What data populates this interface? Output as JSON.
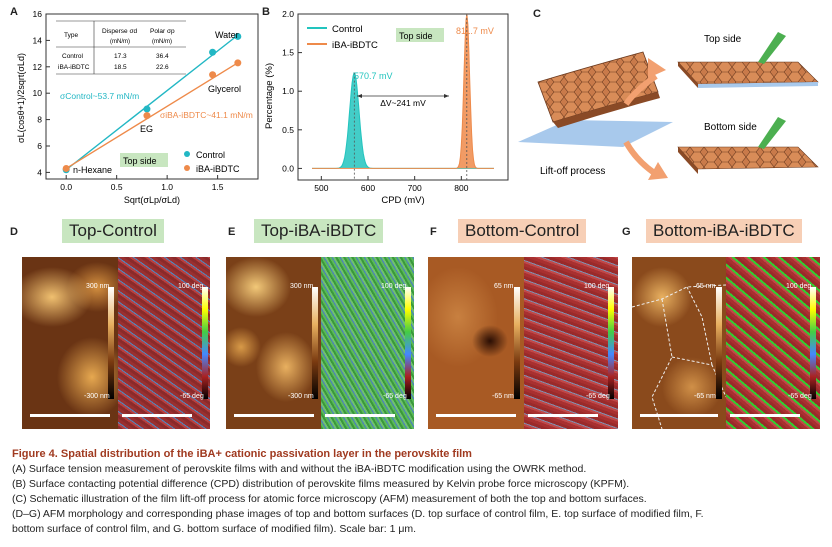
{
  "panelA": {
    "letter": "A",
    "ylabel": "σL(cosθ+1)/2sqrt(σLd)",
    "xlabel": "Sqrt(σLp/σLd)",
    "table": {
      "headers": [
        "Type",
        "Disperse σd",
        "Polar σp"
      ],
      "units": [
        "",
        "(mN/m)",
        "(mN/m)"
      ],
      "rows": [
        [
          "Control",
          "17.3",
          "36.4"
        ],
        [
          "iBA-iBDTC",
          "18.5",
          "22.6"
        ]
      ]
    },
    "point_labels": [
      "Water",
      "Glycerol",
      "EG",
      "n-Hexane"
    ],
    "ann_control": "σControl~53.7 mN/m",
    "ann_ibdtc": "σiBA-iBDTC~41.1 mN/m",
    "side_tag": "Top side",
    "legend": [
      "Control",
      "iBA-iBDTC"
    ]
  },
  "panelB": {
    "letter": "B",
    "ylabel": "Percentage (%)",
    "xlabel": "CPD (mV)",
    "legend": [
      "Control",
      "iBA-iBDTC"
    ],
    "side_tag": "Top side",
    "peak_control": "570.7 mV",
    "peak_ibdtc": "811.7 mV",
    "delta": "ΔV~241 mV"
  },
  "panelC": {
    "letter": "C",
    "top_side": "Top side",
    "bottom_side": "Bottom side",
    "liftoff": "Lift-off process"
  },
  "afm": [
    {
      "letter": "D",
      "tag": "Top-Control",
      "height_top": "300 nm",
      "height_bottom": "-300 nm",
      "phase_top": "100 deg",
      "phase_bottom": "-65 deg"
    },
    {
      "letter": "E",
      "tag": "Top-iBA-iBDTC",
      "height_top": "300 nm",
      "height_bottom": "-300 nm",
      "phase_top": "100 deg",
      "phase_bottom": "-65 deg"
    },
    {
      "letter": "F",
      "tag": "Bottom-Control",
      "height_top": "65 nm",
      "height_bottom": "-65 nm",
      "phase_top": "100 deg",
      "phase_bottom": "-65 deg"
    },
    {
      "letter": "G",
      "tag": "Bottom-iBA-iBDTC",
      "height_top": "65 nm",
      "height_bottom": "-65 nm",
      "phase_top": "100 deg",
      "phase_bottom": "-65 deg"
    }
  ],
  "caption": {
    "title": "Figure 4.  Spatial distribution of the iBA+ cationic passivation layer in the perovskite film",
    "lines": [
      "(A) Surface tension measurement of perovskite films with and without the iBA-iBDTC modification using the OWRK method.",
      "(B) Surface contacting potential difference (CPD) distribution of perovskite films measured by Kelvin probe force microscopy (KPFM).",
      "(C) Schematic illustration of the film lift-off process for atomic force microscopy (AFM) measurement of both the top and bottom surfaces.",
      "(D–G) AFM morphology and corresponding phase images of top and bottom surfaces (D. top surface of control film, E. top surface of modified film, F.",
      "bottom surface of control film, and G. bottom surface of modified film). Scale bar: 1 μm."
    ]
  },
  "chart_data": [
    {
      "type": "scatter",
      "xlabel": "Sqrt(σLp/σLd)",
      "ylabel": "σL(cosθ+1)/2sqrt(σLd)",
      "xlim": [
        -0.2,
        1.9
      ],
      "ylim": [
        3.5,
        16
      ],
      "xticks": [
        0.0,
        0.5,
        1.0,
        1.5
      ],
      "yticks": [
        4,
        6,
        8,
        10,
        12,
        14,
        16
      ],
      "series": [
        {
          "name": "Control",
          "color": "#22b7c4",
          "x": [
            0.0,
            0.8,
            1.45,
            1.7
          ],
          "y": [
            4.2,
            8.8,
            13.1,
            14.3
          ],
          "fit": [
            [
              0.0,
              4.2
            ],
            [
              1.7,
              14.4
            ]
          ]
        },
        {
          "name": "iBA-iBDTC",
          "color": "#ee8a4a",
          "x": [
            0.0,
            0.8,
            1.45,
            1.7
          ],
          "y": [
            4.3,
            8.3,
            11.4,
            12.3
          ],
          "fit": [
            [
              0.0,
              4.3
            ],
            [
              1.7,
              12.3
            ]
          ]
        }
      ]
    },
    {
      "type": "histogram",
      "xlabel": "CPD (mV)",
      "ylabel": "Percentage (%)",
      "xlim": [
        450,
        900
      ],
      "ylim": [
        -0.15,
        2.0
      ],
      "xticks": [
        500,
        600,
        700,
        800
      ],
      "yticks": [
        0.0,
        0.5,
        1.0,
        1.5,
        2.0
      ],
      "series": [
        {
          "name": "Control",
          "color": "#22c4be",
          "center": 570.7,
          "sigma": 10,
          "peak": 1.24
        },
        {
          "name": "iBA-iBDTC",
          "color": "#ee8a4a",
          "center": 811.7,
          "sigma": 6,
          "peak": 2.0
        }
      ]
    }
  ]
}
